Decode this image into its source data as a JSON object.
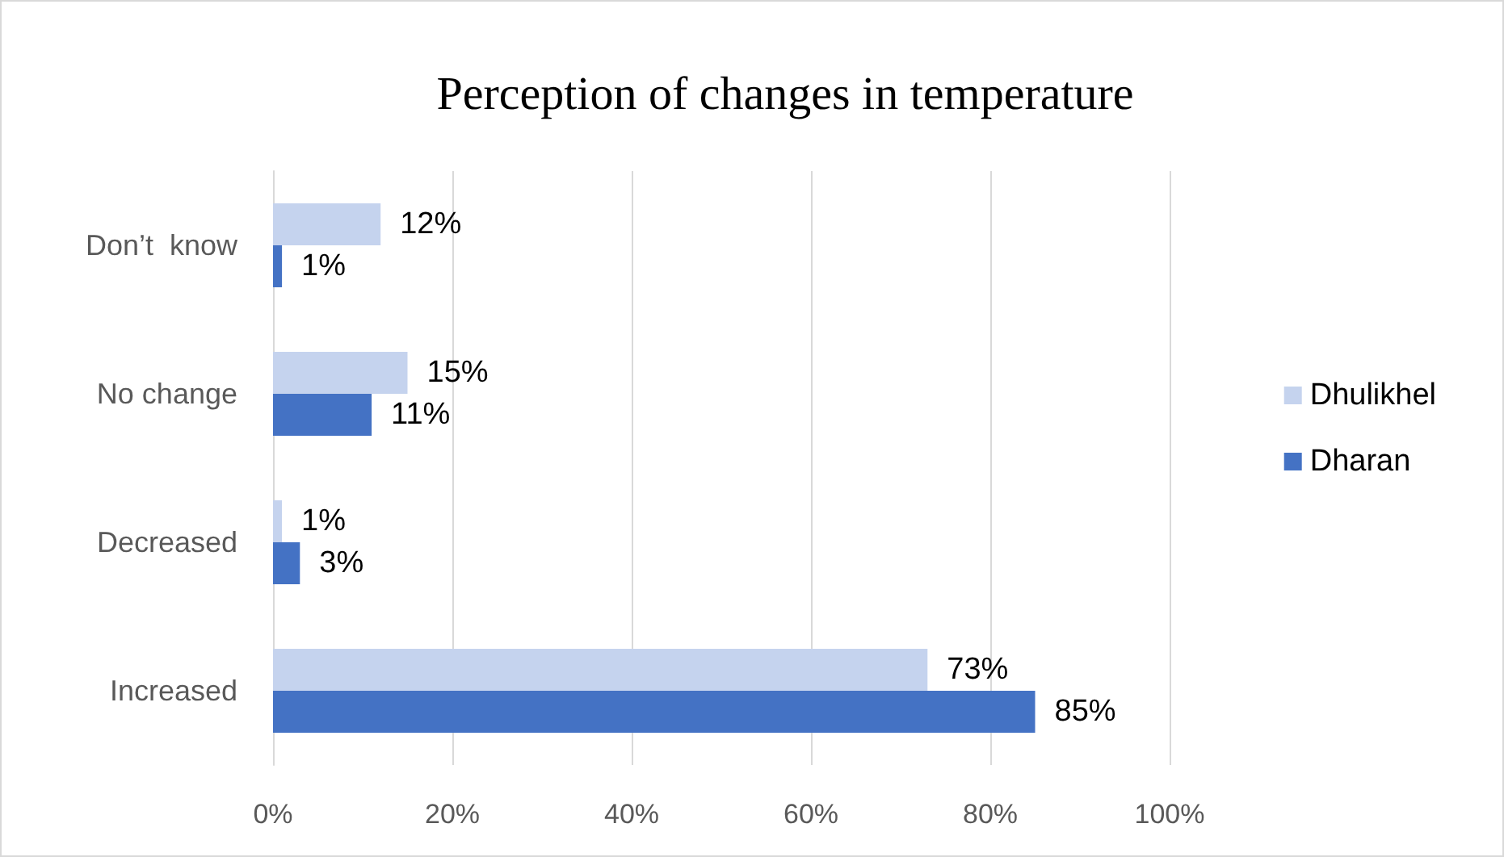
{
  "chart_data": {
    "type": "bar",
    "orientation": "horizontal",
    "title": "Perception of changes in temperature",
    "categories": [
      "Don’t  know",
      "No change",
      "Decreased",
      "Increased"
    ],
    "series": [
      {
        "name": "Dhulikhel",
        "color": "#c5d3ee",
        "values": [
          12,
          15,
          1,
          73
        ],
        "value_labels": [
          "12%",
          "15%",
          "1%",
          "73%"
        ]
      },
      {
        "name": "Dharan",
        "color": "#4472c4",
        "values": [
          1,
          11,
          3,
          85
        ],
        "value_labels": [
          "1%",
          "11%",
          "3%",
          "85%"
        ]
      }
    ],
    "xlim": [
      0,
      100
    ],
    "xticks": [
      {
        "value": 0,
        "label": "0%"
      },
      {
        "value": 20,
        "label": "20%"
      },
      {
        "value": 40,
        "label": "40%"
      },
      {
        "value": 60,
        "label": "60%"
      },
      {
        "value": 80,
        "label": "80%"
      },
      {
        "value": 100,
        "label": "100%"
      }
    ],
    "grid": "x",
    "legend": "right"
  }
}
